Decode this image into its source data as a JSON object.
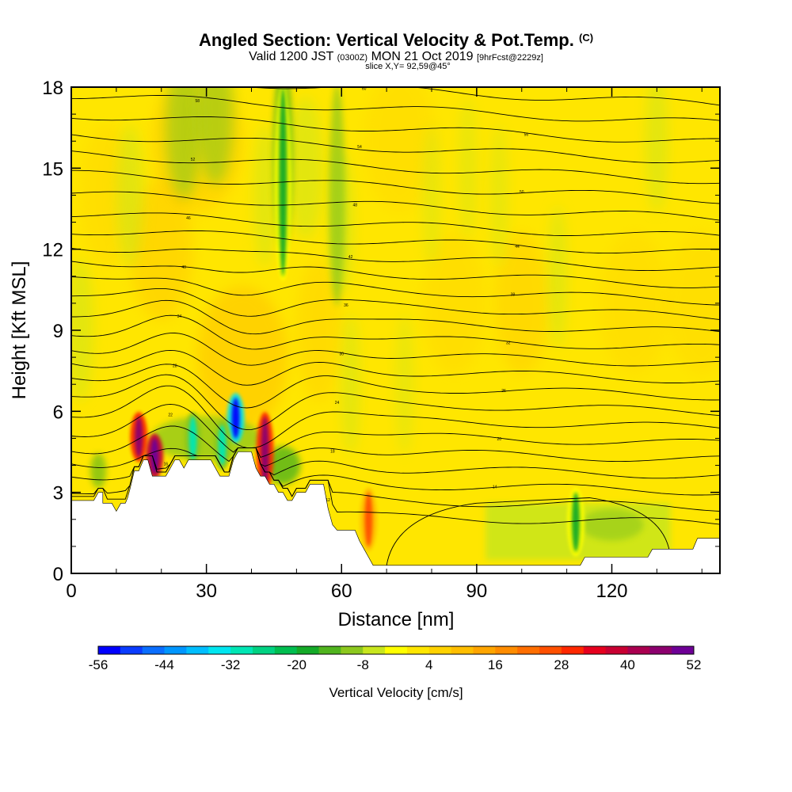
{
  "title": {
    "main": "Angled Section: Vertical Velocity & Pot.Temp.",
    "copyright": "(C)",
    "valid_prefix": "Valid 1200 JST",
    "valid_utc": "(0300Z)",
    "valid_date": "MON 21 Oct 2019",
    "forecast": "[9hrFcst@2229z]",
    "slice": "slice X,Y= 92,59@45°"
  },
  "chart_data": {
    "type": "heatmap",
    "xlabel": "Distance [nm]",
    "ylabel": "Height [Kft MSL]",
    "xlim": [
      0,
      144
    ],
    "ylim": [
      0,
      18
    ],
    "x_ticks": [
      "0",
      "30",
      "60",
      "90",
      "120"
    ],
    "y_ticks": [
      "0",
      "3",
      "6",
      "9",
      "12",
      "15",
      "18"
    ],
    "x_tick_values": [
      0,
      30,
      60,
      90,
      120
    ],
    "y_tick_values": [
      0,
      3,
      6,
      9,
      12,
      15,
      18
    ],
    "colorbar": {
      "label": "Vertical Velocity [cm/s]",
      "min": -56,
      "max": 52,
      "step": 4,
      "tick_labels": [
        "-56",
        "-44",
        "-32",
        "-20",
        "-8",
        "4",
        "16",
        "28",
        "40",
        "52"
      ],
      "colors": [
        "#0000ff",
        "#0a3cff",
        "#0a6eff",
        "#0096ff",
        "#00beff",
        "#00e6f0",
        "#00e6b4",
        "#00d282",
        "#00be50",
        "#14aa28",
        "#50b41e",
        "#8cc81e",
        "#c8e61e",
        "#ffff00",
        "#ffe600",
        "#ffd200",
        "#ffbe00",
        "#ffa500",
        "#ff8c00",
        "#ff6e00",
        "#ff5000",
        "#ff2800",
        "#e6001e",
        "#c80032",
        "#aa0050",
        "#8c006e",
        "#6e0096"
      ]
    },
    "features": [
      {
        "type": "updraft",
        "x": 15,
        "y_bottom": 4.3,
        "y_top": 5.8,
        "value": 44
      },
      {
        "type": "updraft",
        "x": 18.5,
        "y_bottom": 3.7,
        "y_top": 5.0,
        "value": 52
      },
      {
        "type": "updraft",
        "x": 43,
        "y_bottom": 3.2,
        "y_top": 5.8,
        "value": 44
      },
      {
        "type": "updraft",
        "x": 66,
        "y_bottom": 1.0,
        "y_top": 3.0,
        "value": 24
      },
      {
        "type": "downdraft",
        "x": 36.5,
        "y_bottom": 5.0,
        "y_top": 6.5,
        "value": -56
      },
      {
        "type": "downdraft",
        "x": 27,
        "y_bottom": 4.2,
        "y_top": 5.8,
        "value": -32
      },
      {
        "type": "downdraft",
        "x": 33.5,
        "y_bottom": 4.0,
        "y_top": 5.5,
        "value": -32
      },
      {
        "type": "downdraft",
        "x": 47,
        "y_bottom": 11,
        "y_top": 18,
        "value": -20
      },
      {
        "type": "downdraft",
        "x": 112,
        "y_bottom": 0.8,
        "y_top": 3.0,
        "value": -20
      },
      {
        "type": "sinking_zone",
        "x_start": 92,
        "x_end": 133,
        "y_bottom": 0.7,
        "y_top": 2.6,
        "value": -4
      }
    ],
    "terrain": [
      [
        0,
        2.7
      ],
      [
        5,
        2.7
      ],
      [
        6,
        3.0
      ],
      [
        7,
        3.0
      ],
      [
        7,
        2.6
      ],
      [
        9,
        2.6
      ],
      [
        10,
        2.3
      ],
      [
        11,
        2.6
      ],
      [
        12,
        2.6
      ],
      [
        12.5,
        2.8
      ],
      [
        13,
        3.1
      ],
      [
        14,
        3.8
      ],
      [
        15,
        3.8
      ],
      [
        16,
        4.2
      ],
      [
        17,
        4.2
      ],
      [
        18,
        3.6
      ],
      [
        21,
        3.6
      ],
      [
        22,
        3.9
      ],
      [
        23,
        4.2
      ],
      [
        24,
        4.2
      ],
      [
        25,
        3.9
      ],
      [
        26,
        4.2
      ],
      [
        31,
        4.2
      ],
      [
        32,
        3.9
      ],
      [
        33,
        3.6
      ],
      [
        35,
        3.6
      ],
      [
        36,
        4.2
      ],
      [
        37,
        4.5
      ],
      [
        40,
        4.5
      ],
      [
        41,
        3.9
      ],
      [
        42,
        3.6
      ],
      [
        43,
        3.6
      ],
      [
        44,
        3.3
      ],
      [
        45,
        3.3
      ],
      [
        46,
        3.0
      ],
      [
        47,
        3.0
      ],
      [
        48,
        2.7
      ],
      [
        49,
        2.7
      ],
      [
        50,
        3.0
      ],
      [
        52,
        3.0
      ],
      [
        53,
        3.3
      ],
      [
        56,
        3.3
      ],
      [
        57,
        2.4
      ],
      [
        58,
        1.8
      ],
      [
        59,
        1.6
      ],
      [
        63,
        1.6
      ],
      [
        64,
        1.2
      ],
      [
        65,
        0.9
      ],
      [
        66,
        0.6
      ],
      [
        67,
        0.3
      ],
      [
        113,
        0.3
      ],
      [
        114,
        0.6
      ],
      [
        128,
        0.6
      ],
      [
        129,
        0.9
      ],
      [
        138,
        0.9
      ],
      [
        139,
        1.3
      ],
      [
        144,
        1.3
      ]
    ],
    "contour_labels": [
      "10",
      "12",
      "14",
      "16",
      "18",
      "20",
      "22",
      "24",
      "26",
      "28",
      "30",
      "32",
      "34",
      "36",
      "38",
      "40",
      "42",
      "44",
      "46",
      "48",
      "50",
      "52",
      "54",
      "56",
      "58",
      "60"
    ]
  }
}
